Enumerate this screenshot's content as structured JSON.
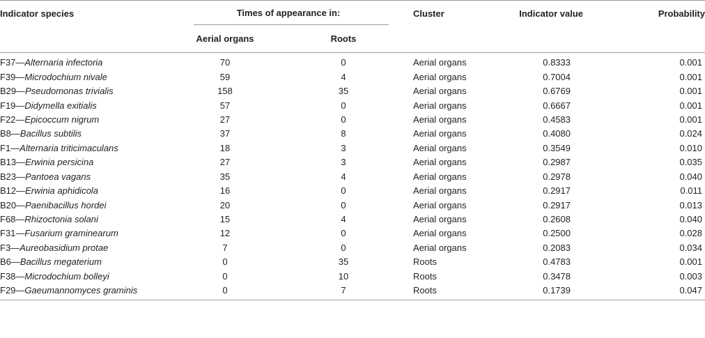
{
  "headers": {
    "species": "Indicator species",
    "times": "Times of appearance in:",
    "aerial": "Aerial organs",
    "roots": "Roots",
    "cluster": "Cluster",
    "indicator_value": "Indicator value",
    "probability": "Probability"
  },
  "rows": [
    {
      "code": "F37",
      "species": "Alternaria infectoria",
      "aerial": "70",
      "roots": "0",
      "cluster": "Aerial organs",
      "iv": "0.8333",
      "p": "0.001"
    },
    {
      "code": "F39",
      "species": "Microdochium nivale",
      "aerial": "59",
      "roots": "4",
      "cluster": "Aerial organs",
      "iv": "0.7004",
      "p": "0.001"
    },
    {
      "code": "B29",
      "species": "Pseudomonas trivialis",
      "aerial": "158",
      "roots": "35",
      "cluster": "Aerial organs",
      "iv": "0.6769",
      "p": "0.001"
    },
    {
      "code": "F19",
      "species": "Didymella exitialis",
      "aerial": "57",
      "roots": "0",
      "cluster": "Aerial organs",
      "iv": "0.6667",
      "p": "0.001"
    },
    {
      "code": "F22",
      "species": "Epicoccum nigrum",
      "aerial": "27",
      "roots": "0",
      "cluster": "Aerial organs",
      "iv": "0.4583",
      "p": "0.001"
    },
    {
      "code": "B8",
      "species": "Bacillus subtilis",
      "aerial": "37",
      "roots": "8",
      "cluster": "Aerial organs",
      "iv": "0.4080",
      "p": "0.024"
    },
    {
      "code": "F1",
      "species": "Alternaria triticimaculans",
      "aerial": "18",
      "roots": "3",
      "cluster": "Aerial organs",
      "iv": "0.3549",
      "p": "0.010"
    },
    {
      "code": "B13",
      "species": "Erwinia persicina",
      "aerial": "27",
      "roots": "3",
      "cluster": "Aerial organs",
      "iv": "0.2987",
      "p": "0.035"
    },
    {
      "code": "B23",
      "species": "Pantoea vagans",
      "aerial": "35",
      "roots": "4",
      "cluster": "Aerial organs",
      "iv": "0.2978",
      "p": "0.040"
    },
    {
      "code": "B12",
      "species": "Erwinia aphidicola",
      "aerial": "16",
      "roots": "0",
      "cluster": "Aerial organs",
      "iv": "0.2917",
      "p": "0.011"
    },
    {
      "code": "B20",
      "species": "Paenibacillus hordei",
      "aerial": "20",
      "roots": "0",
      "cluster": "Aerial organs",
      "iv": "0.2917",
      "p": "0.013"
    },
    {
      "code": "F68",
      "species": "Rhizoctonia solani",
      "aerial": "15",
      "roots": "4",
      "cluster": "Aerial organs",
      "iv": "0.2608",
      "p": "0.040"
    },
    {
      "code": "F31",
      "species": "Fusarium graminearum",
      "aerial": "12",
      "roots": "0",
      "cluster": "Aerial organs",
      "iv": "0.2500",
      "p": "0.028"
    },
    {
      "code": "F3",
      "species": "Aureobasidium protae",
      "aerial": "7",
      "roots": "0",
      "cluster": "Aerial organs",
      "iv": "0.2083",
      "p": "0.034"
    },
    {
      "code": "B6",
      "species": "Bacillus megaterium",
      "aerial": "0",
      "roots": "35",
      "cluster": "Roots",
      "iv": "0.4783",
      "p": "0.001"
    },
    {
      "code": "F38",
      "species": "Microdochium bolleyi",
      "aerial": "0",
      "roots": "10",
      "cluster": "Roots",
      "iv": "0.3478",
      "p": "0.003"
    },
    {
      "code": "F29",
      "species": "Gaeumannomyces graminis",
      "aerial": "0",
      "roots": "7",
      "cluster": "Roots",
      "iv": "0.1739",
      "p": "0.047"
    }
  ]
}
